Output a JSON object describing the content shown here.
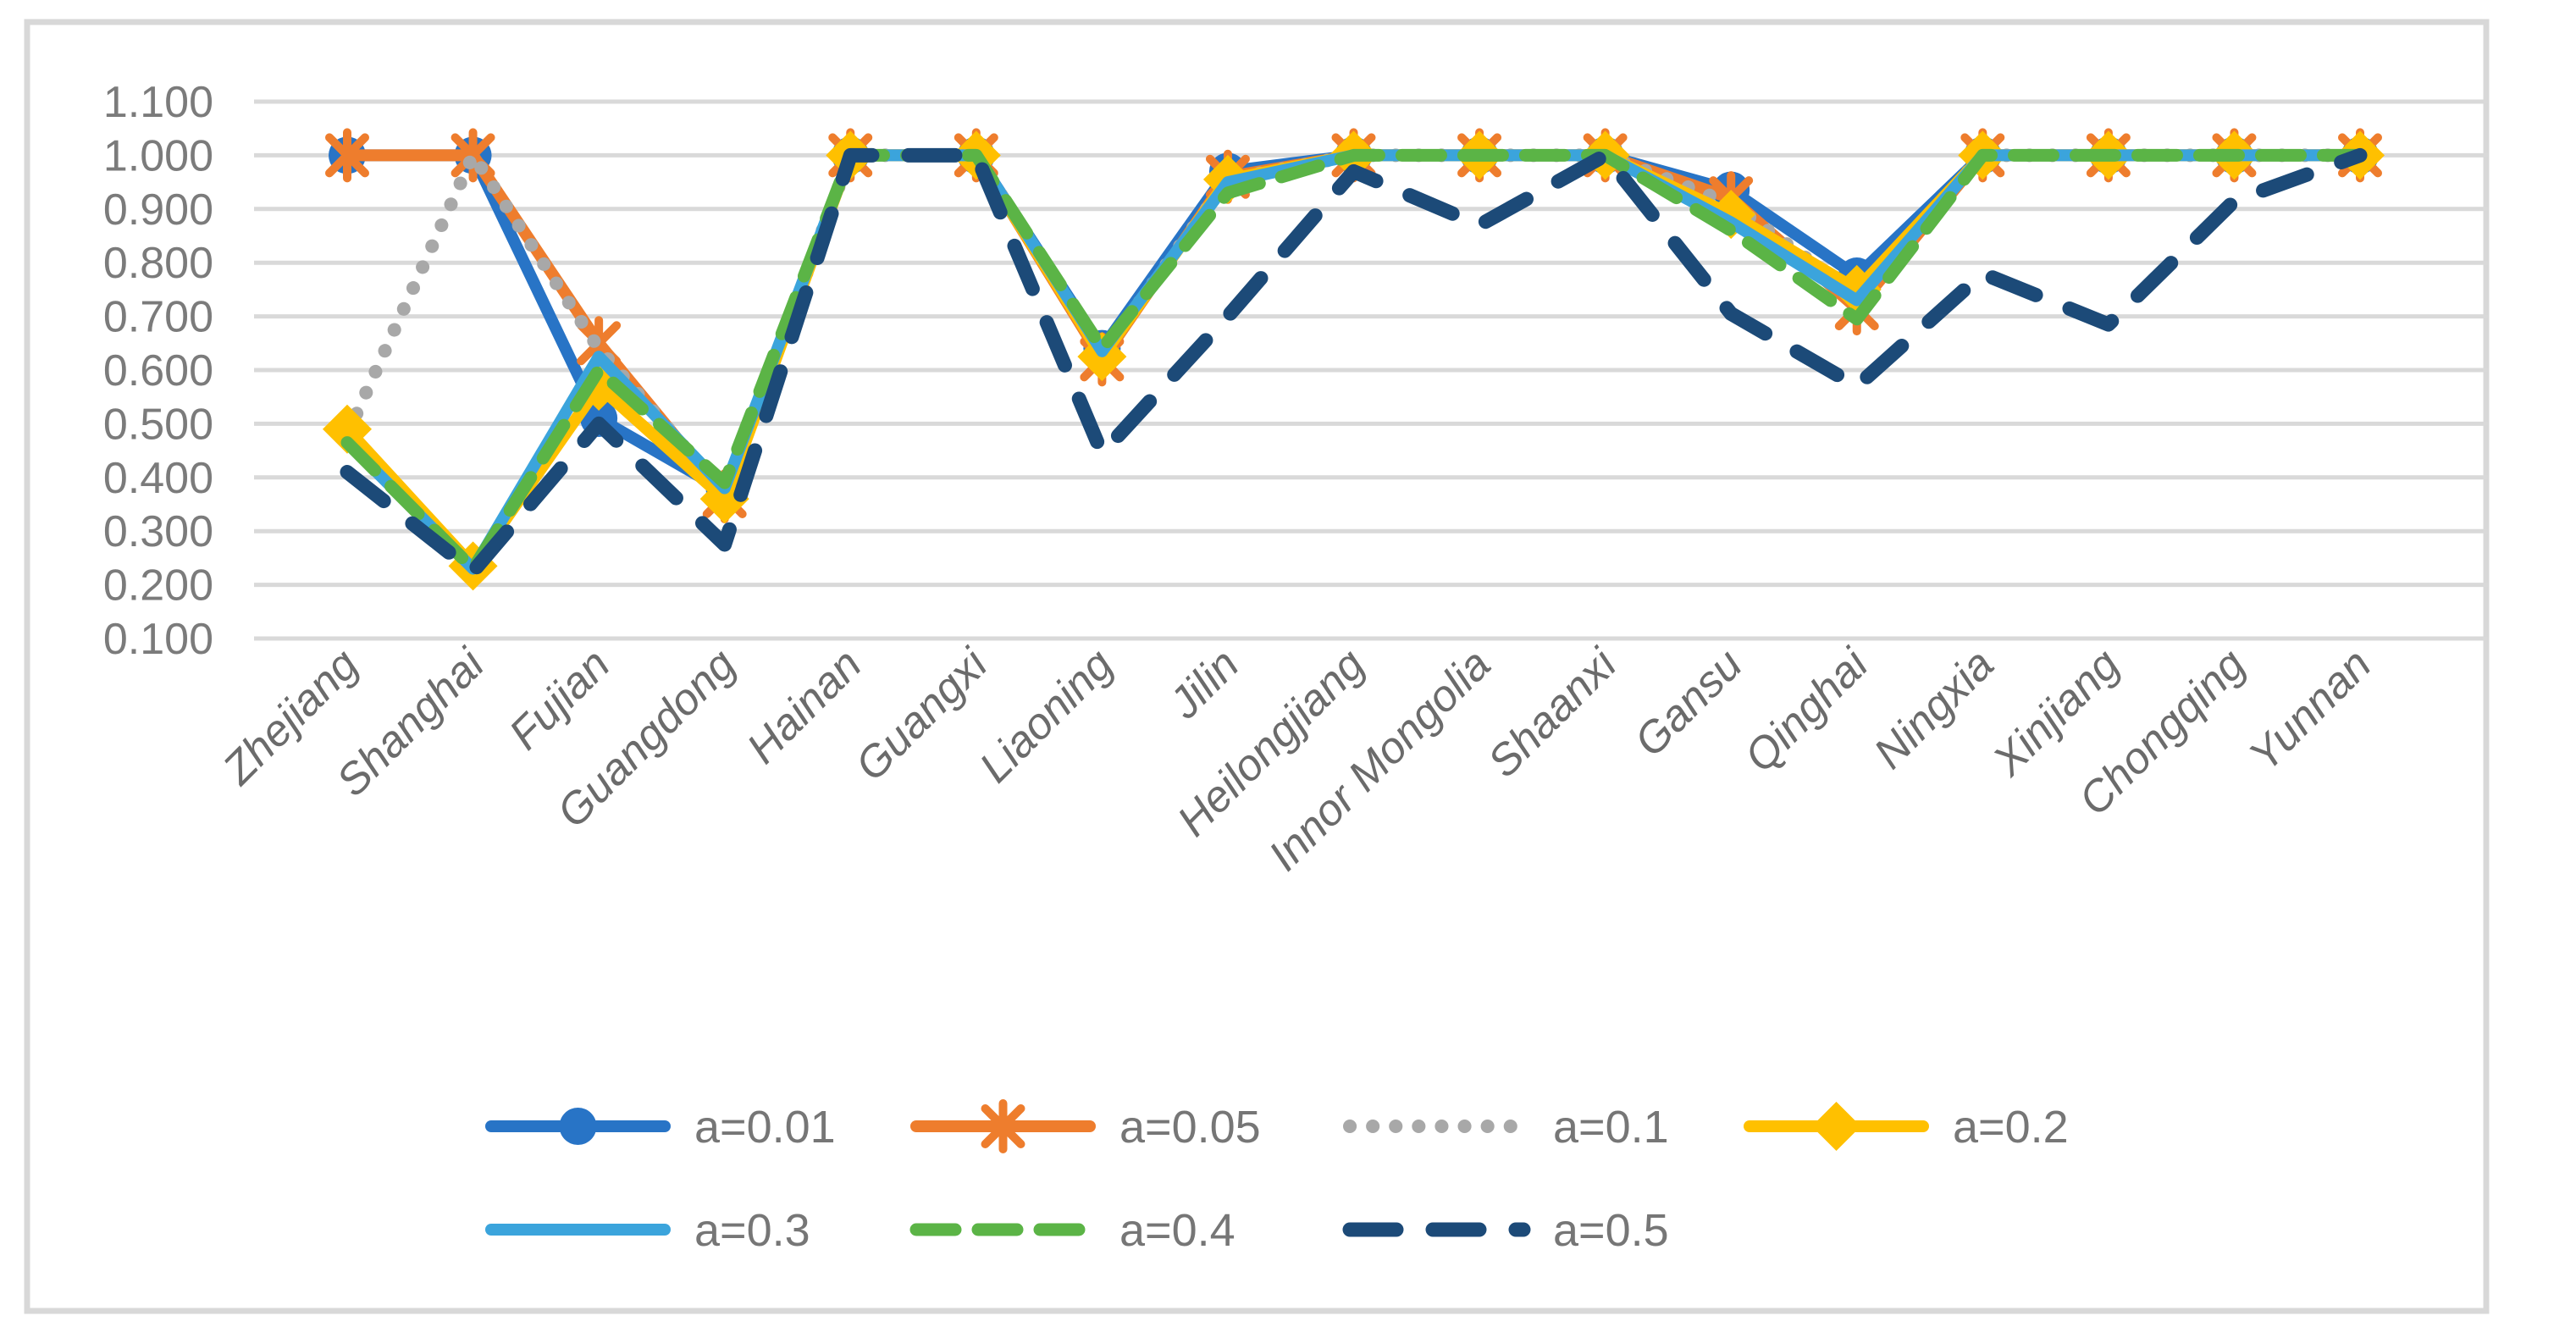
{
  "chart_data": {
    "type": "line",
    "title": "",
    "xlabel": "",
    "ylabel": "",
    "ylim": [
      0.1,
      1.1
    ],
    "grid": "horizontal",
    "legend_position": "bottom",
    "y_ticks": [
      "1.100",
      "1.000",
      "0.900",
      "0.800",
      "0.700",
      "0.600",
      "0.500",
      "0.400",
      "0.300",
      "0.200",
      "0.100"
    ],
    "categories": [
      "Zhejiang",
      "Shanghai",
      "Fujian",
      "Guangdong",
      "Hainan",
      "Guangxi",
      "Liaoning",
      "Jilin",
      "Heilongjiang",
      "Innor Mongolia",
      "Shaanxi",
      "Gansu",
      "Qinghai",
      "Ningxia",
      "Xinjiang",
      "Chongqing",
      "Yunnan"
    ],
    "series": [
      {
        "name": "a=0.01",
        "color": "#2874C6",
        "style": "solid",
        "marker": "circle",
        "values": [
          1.0,
          1.0,
          0.51,
          0.375,
          1.0,
          1.0,
          0.64,
          0.97,
          1.0,
          1.0,
          1.0,
          0.935,
          0.775,
          1.0,
          1.0,
          1.0,
          1.0
        ]
      },
      {
        "name": "a=0.05",
        "color": "#EE7D2D",
        "style": "solid",
        "marker": "asterisk",
        "values": [
          1.0,
          1.0,
          0.65,
          0.365,
          1.0,
          1.0,
          0.62,
          0.96,
          1.0,
          1.0,
          1.0,
          0.92,
          0.715,
          1.0,
          1.0,
          1.0,
          1.0
        ]
      },
      {
        "name": "a=0.1",
        "color": "#A8A8A8",
        "style": "dotted",
        "marker": "none",
        "values": [
          0.48,
          1.0,
          0.64,
          0.37,
          1.0,
          1.0,
          0.63,
          0.955,
          1.0,
          1.0,
          1.0,
          0.91,
          0.74,
          1.0,
          1.0,
          1.0,
          1.0
        ]
      },
      {
        "name": "a=0.2",
        "color": "#FFC000",
        "style": "solid",
        "marker": "diamond",
        "values": [
          0.49,
          0.235,
          0.57,
          0.36,
          1.0,
          1.0,
          0.625,
          0.955,
          1.0,
          1.0,
          1.0,
          0.89,
          0.75,
          1.0,
          1.0,
          1.0,
          1.0
        ]
      },
      {
        "name": "a=0.3",
        "color": "#3BA4DC",
        "style": "solid",
        "marker": "none",
        "values": [
          0.465,
          0.23,
          0.625,
          0.38,
          1.0,
          1.0,
          0.635,
          0.95,
          1.0,
          1.0,
          1.0,
          0.875,
          0.73,
          1.0,
          1.0,
          1.0,
          1.0
        ]
      },
      {
        "name": "a=0.4",
        "color": "#5BB446",
        "style": "dashed",
        "marker": "none",
        "values": [
          0.465,
          0.23,
          0.6,
          0.39,
          1.0,
          1.0,
          0.64,
          0.93,
          1.0,
          1.0,
          1.0,
          0.86,
          0.695,
          1.0,
          1.0,
          1.0,
          1.0
        ]
      },
      {
        "name": "a=0.5",
        "color": "#1C4A78",
        "style": "longdash",
        "marker": "none",
        "values": [
          0.41,
          0.225,
          0.5,
          0.275,
          1.0,
          1.0,
          0.445,
          0.7,
          0.97,
          0.87,
          1.0,
          0.705,
          0.57,
          0.78,
          0.685,
          0.915,
          1.0
        ]
      }
    ]
  },
  "colors": {
    "background": "#FFFFFF",
    "gridline": "#D9D9D9",
    "frame": "#D8D8D8",
    "y_tick_text": "#7B7B7B",
    "x_tick_text": "#6B6B6B",
    "legend_text": "#767676"
  }
}
